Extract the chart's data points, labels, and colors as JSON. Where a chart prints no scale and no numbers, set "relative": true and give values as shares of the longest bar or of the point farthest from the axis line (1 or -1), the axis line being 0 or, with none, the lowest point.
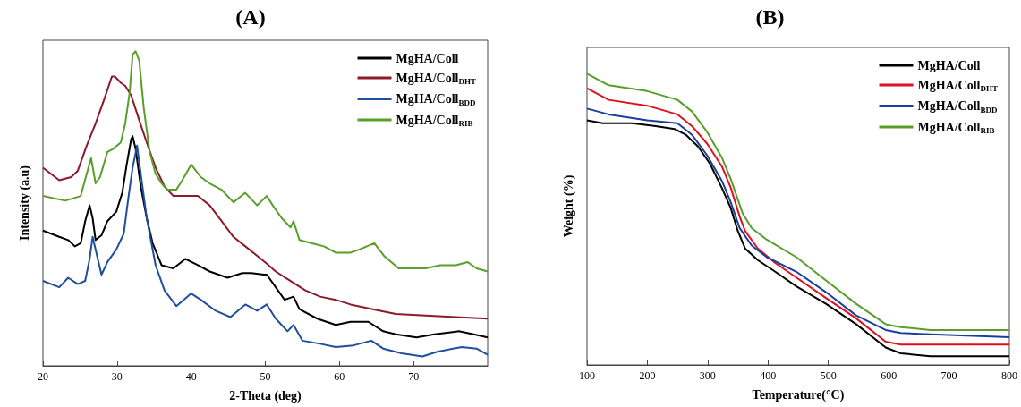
{
  "chart_data": [
    {
      "type": "line",
      "title": "(A)",
      "xlabel": "2-Theta (deg)",
      "ylabel": "Intensity (a.u)",
      "relative": true,
      "xlim": [
        20,
        80
      ],
      "xticks": [
        20,
        30,
        40,
        50,
        60,
        70
      ],
      "legend": "top right",
      "grid": false,
      "marker": "none",
      "line_style": "solid",
      "series": [
        {
          "name": "MgHA/Coll",
          "color": "#000000",
          "x": [
            20,
            22.2,
            23.4,
            24.3,
            25.1,
            25.7,
            26.3,
            26.7,
            27.1,
            27.9,
            28.7,
            29.9,
            30.7,
            31.3,
            31.9,
            32.1,
            32.5,
            33.2,
            34.0,
            34.8,
            36.0,
            37.6,
            39.2,
            40.9,
            42.5,
            44.9,
            46.9,
            48.1,
            49.8,
            50.2,
            51.4,
            52.6,
            53.8,
            54.6,
            57.0,
            59.5,
            61.5,
            63.9,
            65.9,
            67.6,
            70.4,
            72.8,
            76.1,
            78.1,
            80
          ],
          "values": [
            0.43,
            0.41,
            0.4,
            0.38,
            0.39,
            0.46,
            0.51,
            0.47,
            0.4,
            0.415,
            0.46,
            0.49,
            0.55,
            0.64,
            0.72,
            0.73,
            0.69,
            0.57,
            0.47,
            0.39,
            0.32,
            0.31,
            0.34,
            0.32,
            0.3,
            0.28,
            0.295,
            0.295,
            0.29,
            0.29,
            0.25,
            0.21,
            0.22,
            0.18,
            0.15,
            0.13,
            0.14,
            0.14,
            0.11,
            0.1,
            0.09,
            0.1,
            0.11,
            0.1,
            0.09
          ]
        },
        {
          "name": "MgHA/Coll$_{DHT}$",
          "color": "#8b1a2a",
          "x": [
            20,
            22.2,
            23.8,
            24.7,
            25.9,
            27.1,
            28.3,
            29.3,
            29.7,
            30.5,
            31.1,
            31.9,
            33.0,
            34.0,
            35.2,
            36.4,
            37.6,
            39.2,
            40.9,
            42.5,
            44.1,
            45.7,
            47.3,
            48.9,
            50.2,
            51.4,
            53.4,
            55.4,
            57.4,
            59.5,
            61.5,
            63.5,
            65.5,
            67.6,
            71.6,
            75.7,
            80
          ],
          "values": [
            0.63,
            0.59,
            0.6,
            0.62,
            0.7,
            0.77,
            0.85,
            0.92,
            0.92,
            0.9,
            0.89,
            0.86,
            0.78,
            0.71,
            0.63,
            0.57,
            0.54,
            0.54,
            0.54,
            0.51,
            0.46,
            0.41,
            0.38,
            0.35,
            0.325,
            0.3,
            0.27,
            0.24,
            0.22,
            0.21,
            0.195,
            0.185,
            0.175,
            0.165,
            0.16,
            0.155,
            0.15
          ]
        },
        {
          "name": "MgHA/Coll$_{BDD}$",
          "color": "#1f4e9c",
          "x": [
            20,
            22.2,
            23.4,
            24.7,
            25.7,
            26.3,
            26.7,
            27.3,
            27.9,
            28.7,
            29.9,
            30.9,
            31.5,
            32.1,
            32.7,
            33.2,
            34.0,
            35.2,
            36.4,
            38.0,
            39.0,
            40.0,
            41.3,
            43.3,
            45.3,
            47.3,
            48.9,
            50.2,
            51.4,
            53.0,
            53.8,
            55.0,
            57.4,
            59.5,
            61.9,
            64.3,
            65.9,
            68.4,
            71.2,
            73.2,
            76.5,
            78.5,
            80
          ],
          "values": [
            0.27,
            0.25,
            0.28,
            0.26,
            0.27,
            0.34,
            0.41,
            0.35,
            0.29,
            0.33,
            0.37,
            0.42,
            0.53,
            0.63,
            0.7,
            0.61,
            0.47,
            0.32,
            0.24,
            0.19,
            0.21,
            0.23,
            0.21,
            0.175,
            0.155,
            0.195,
            0.175,
            0.195,
            0.15,
            0.11,
            0.13,
            0.08,
            0.07,
            0.06,
            0.065,
            0.08,
            0.055,
            0.04,
            0.03,
            0.045,
            0.06,
            0.055,
            0.035
          ]
        },
        {
          "name": "MgHA/Coll$_{RIB}$",
          "color": "#5a9e2a",
          "x": [
            20,
            23,
            25.1,
            25.9,
            26.5,
            27.1,
            27.7,
            28.7,
            29.5,
            30.5,
            31.1,
            31.7,
            32.1,
            32.5,
            33,
            33.6,
            34.4,
            35.2,
            36,
            36.8,
            38,
            38.8,
            40,
            41.3,
            42.5,
            44.1,
            45.7,
            47.3,
            48.1,
            48.9,
            50.2,
            51,
            52.2,
            53.4,
            53.8,
            54.6,
            56.2,
            57.9,
            59.5,
            61.5,
            62.7,
            64.7,
            66,
            68,
            70,
            71.6,
            73.6,
            75.7,
            77.3,
            78.5,
            80
          ],
          "values": [
            0.54,
            0.525,
            0.54,
            0.61,
            0.66,
            0.58,
            0.6,
            0.68,
            0.69,
            0.71,
            0.77,
            0.87,
            0.99,
            1.0,
            0.97,
            0.82,
            0.68,
            0.61,
            0.58,
            0.56,
            0.56,
            0.59,
            0.64,
            0.6,
            0.58,
            0.56,
            0.52,
            0.55,
            0.53,
            0.51,
            0.54,
            0.51,
            0.47,
            0.44,
            0.46,
            0.4,
            0.39,
            0.38,
            0.36,
            0.36,
            0.37,
            0.39,
            0.35,
            0.31,
            0.31,
            0.31,
            0.32,
            0.32,
            0.33,
            0.31,
            0.3
          ]
        }
      ]
    },
    {
      "type": "line",
      "title": "(B)",
      "xlabel": "Temperature(°C)",
      "ylabel": "Weight (%)",
      "relative": true,
      "xlim": [
        100,
        800
      ],
      "xticks": [
        100,
        200,
        300,
        400,
        500,
        600,
        700,
        800
      ],
      "legend": "top right",
      "grid": false,
      "marker": "none",
      "line_style": "solid",
      "series": [
        {
          "name": "MgHA/Coll",
          "color": "#000000",
          "x": [
            100,
            126,
            175,
            214,
            245,
            264,
            284,
            304,
            323,
            338,
            350,
            362,
            383,
            412,
            447,
            496,
            546,
            595,
            620,
            669,
            800
          ],
          "values": [
            0.84,
            0.83,
            0.83,
            0.82,
            0.81,
            0.79,
            0.75,
            0.69,
            0.61,
            0.54,
            0.46,
            0.4,
            0.36,
            0.32,
            0.27,
            0.21,
            0.14,
            0.06,
            0.04,
            0.03,
            0.03
          ]
        },
        {
          "name": "MgHA/Coll$_{DHT}$",
          "color": "#e0101e",
          "x": [
            100,
            136,
            200,
            250,
            274,
            299,
            324,
            338,
            353,
            362,
            383,
            412,
            447,
            496,
            546,
            595,
            620,
            669,
            800
          ],
          "values": [
            0.95,
            0.91,
            0.89,
            0.86,
            0.82,
            0.76,
            0.68,
            0.61,
            0.51,
            0.46,
            0.4,
            0.35,
            0.3,
            0.23,
            0.16,
            0.08,
            0.07,
            0.07,
            0.07
          ]
        },
        {
          "name": "MgHA/Coll$_{BDD}$",
          "color": "#1a3f9a",
          "x": [
            100,
            136,
            200,
            250,
            274,
            299,
            324,
            338,
            353,
            373,
            398,
            447,
            496,
            546,
            595,
            620,
            669,
            800
          ],
          "values": [
            0.88,
            0.86,
            0.84,
            0.83,
            0.79,
            0.72,
            0.63,
            0.56,
            0.47,
            0.41,
            0.37,
            0.32,
            0.25,
            0.17,
            0.12,
            0.11,
            0.105,
            0.095
          ]
        },
        {
          "name": "MgHA/Coll$_{RIB}$",
          "color": "#5a9e2a",
          "x": [
            100,
            136,
            200,
            250,
            274,
            299,
            324,
            338,
            358,
            373,
            398,
            447,
            496,
            546,
            595,
            620,
            669,
            800
          ],
          "values": [
            1.0,
            0.96,
            0.94,
            0.91,
            0.87,
            0.8,
            0.71,
            0.64,
            0.52,
            0.47,
            0.43,
            0.37,
            0.29,
            0.21,
            0.14,
            0.13,
            0.12,
            0.12
          ]
        }
      ]
    }
  ]
}
